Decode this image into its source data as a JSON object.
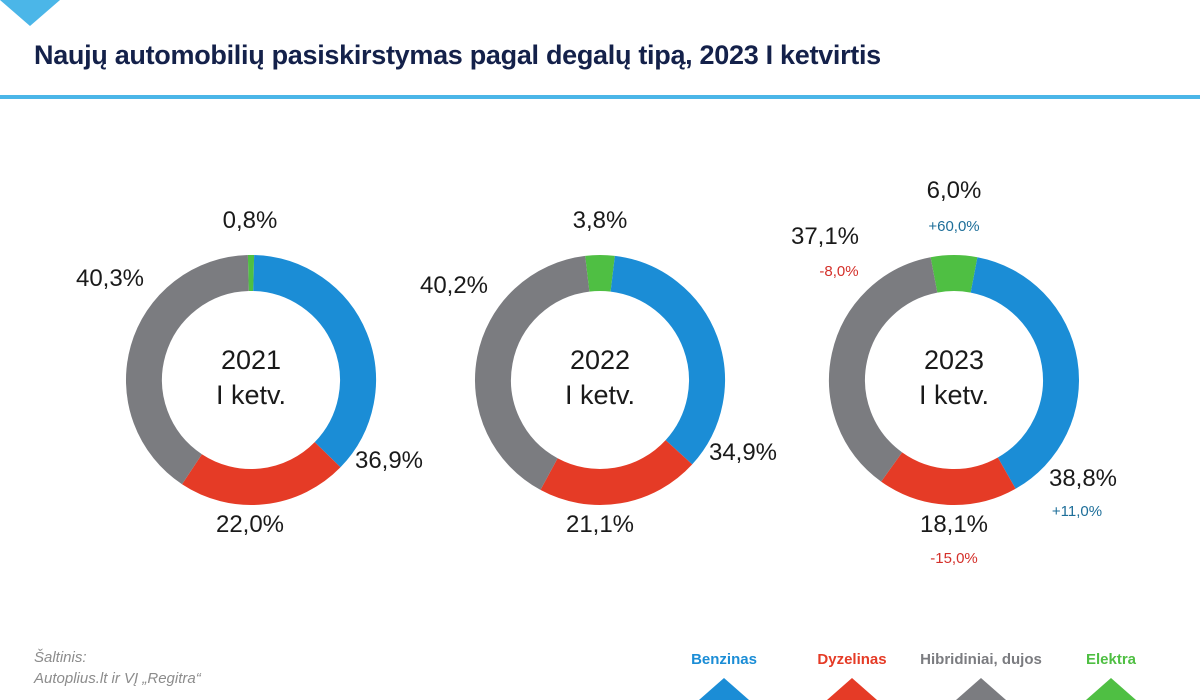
{
  "title": "Naujų automobilių pasiskirstymas pagal degalų tipą, 2023 I ketvirtis",
  "source": {
    "line1": "Šaltinis:",
    "line2": "Autoplius.lt ir VĮ „Regitra“"
  },
  "legend": [
    {
      "label": "Benzinas",
      "color": "#1b8dd6"
    },
    {
      "label": "Dyzelinas",
      "color": "#e53b26"
    },
    {
      "label": "Hibridiniai, dujos",
      "color": "#7b7c80"
    },
    {
      "label": "Elektra",
      "color": "#4fbf43"
    }
  ],
  "chart_data": [
    {
      "type": "donut",
      "center_label": [
        "2021",
        "I ketv."
      ],
      "categories": [
        "Elektra",
        "Benzinas",
        "Dyzelinas",
        "Hibridiniai, dujos"
      ],
      "values": [
        0.8,
        36.9,
        22.0,
        40.3
      ],
      "labels": [
        "0,8%",
        "36,9%",
        "22,0%",
        "40,3%"
      ],
      "changes": [
        "",
        "",
        "",
        ""
      ]
    },
    {
      "type": "donut",
      "center_label": [
        "2022",
        "I ketv."
      ],
      "categories": [
        "Elektra",
        "Benzinas",
        "Dyzelinas",
        "Hibridiniai, dujos"
      ],
      "values": [
        3.8,
        34.9,
        21.1,
        40.2
      ],
      "labels": [
        "3,8%",
        "34,9%",
        "21,1%",
        "40,2%"
      ],
      "changes": [
        "",
        "",
        "",
        ""
      ]
    },
    {
      "type": "donut",
      "center_label": [
        "2023",
        "I ketv."
      ],
      "categories": [
        "Elektra",
        "Benzinas",
        "Dyzelinas",
        "Hibridiniai, dujos"
      ],
      "values": [
        6.0,
        38.8,
        18.1,
        37.1
      ],
      "labels": [
        "6,0%",
        "38,8%",
        "18,1%",
        "37,1%"
      ],
      "changes": [
        "+60,0%",
        "+11,0%",
        "-15,0%",
        "-8,0%"
      ],
      "change_colors": {
        "positive": "#1d6e99",
        "negative": "#d4302a"
      }
    }
  ]
}
